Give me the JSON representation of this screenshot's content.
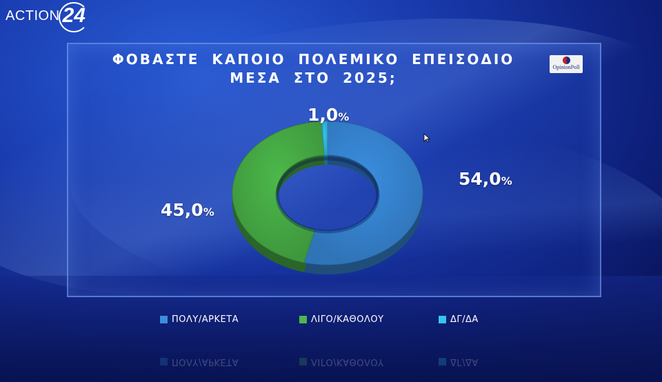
{
  "channel_logo": {
    "text": "ACTION",
    "number": "24"
  },
  "pollster_logo": {
    "text": "OpinionPoll"
  },
  "chart_data": {
    "type": "pie",
    "donut": true,
    "title_lines": [
      "ΦΟΒΑΣΤΕ ΚΑΠΟΙΟ ΠΟΛΕΜΙΚΟ ΕΠΕΙΣΟΔΙΟ",
      "ΜΕΣΑ ΣΤΟ 2025;"
    ],
    "categories": [
      "ΠΟΛΥ/ΑΡΚΕΤΑ",
      "ΛΙΓΟ/ΚΑΘΟΛΟΥ",
      "ΔΓ/ΔΑ"
    ],
    "values": [
      54.0,
      45.0,
      1.0
    ],
    "data_labels": [
      "54,0",
      "45,0",
      "1,0"
    ],
    "unit": "%",
    "colors": [
      "#3a8ee0",
      "#4cb84a",
      "#36c3f0"
    ],
    "legend_position": "bottom"
  }
}
